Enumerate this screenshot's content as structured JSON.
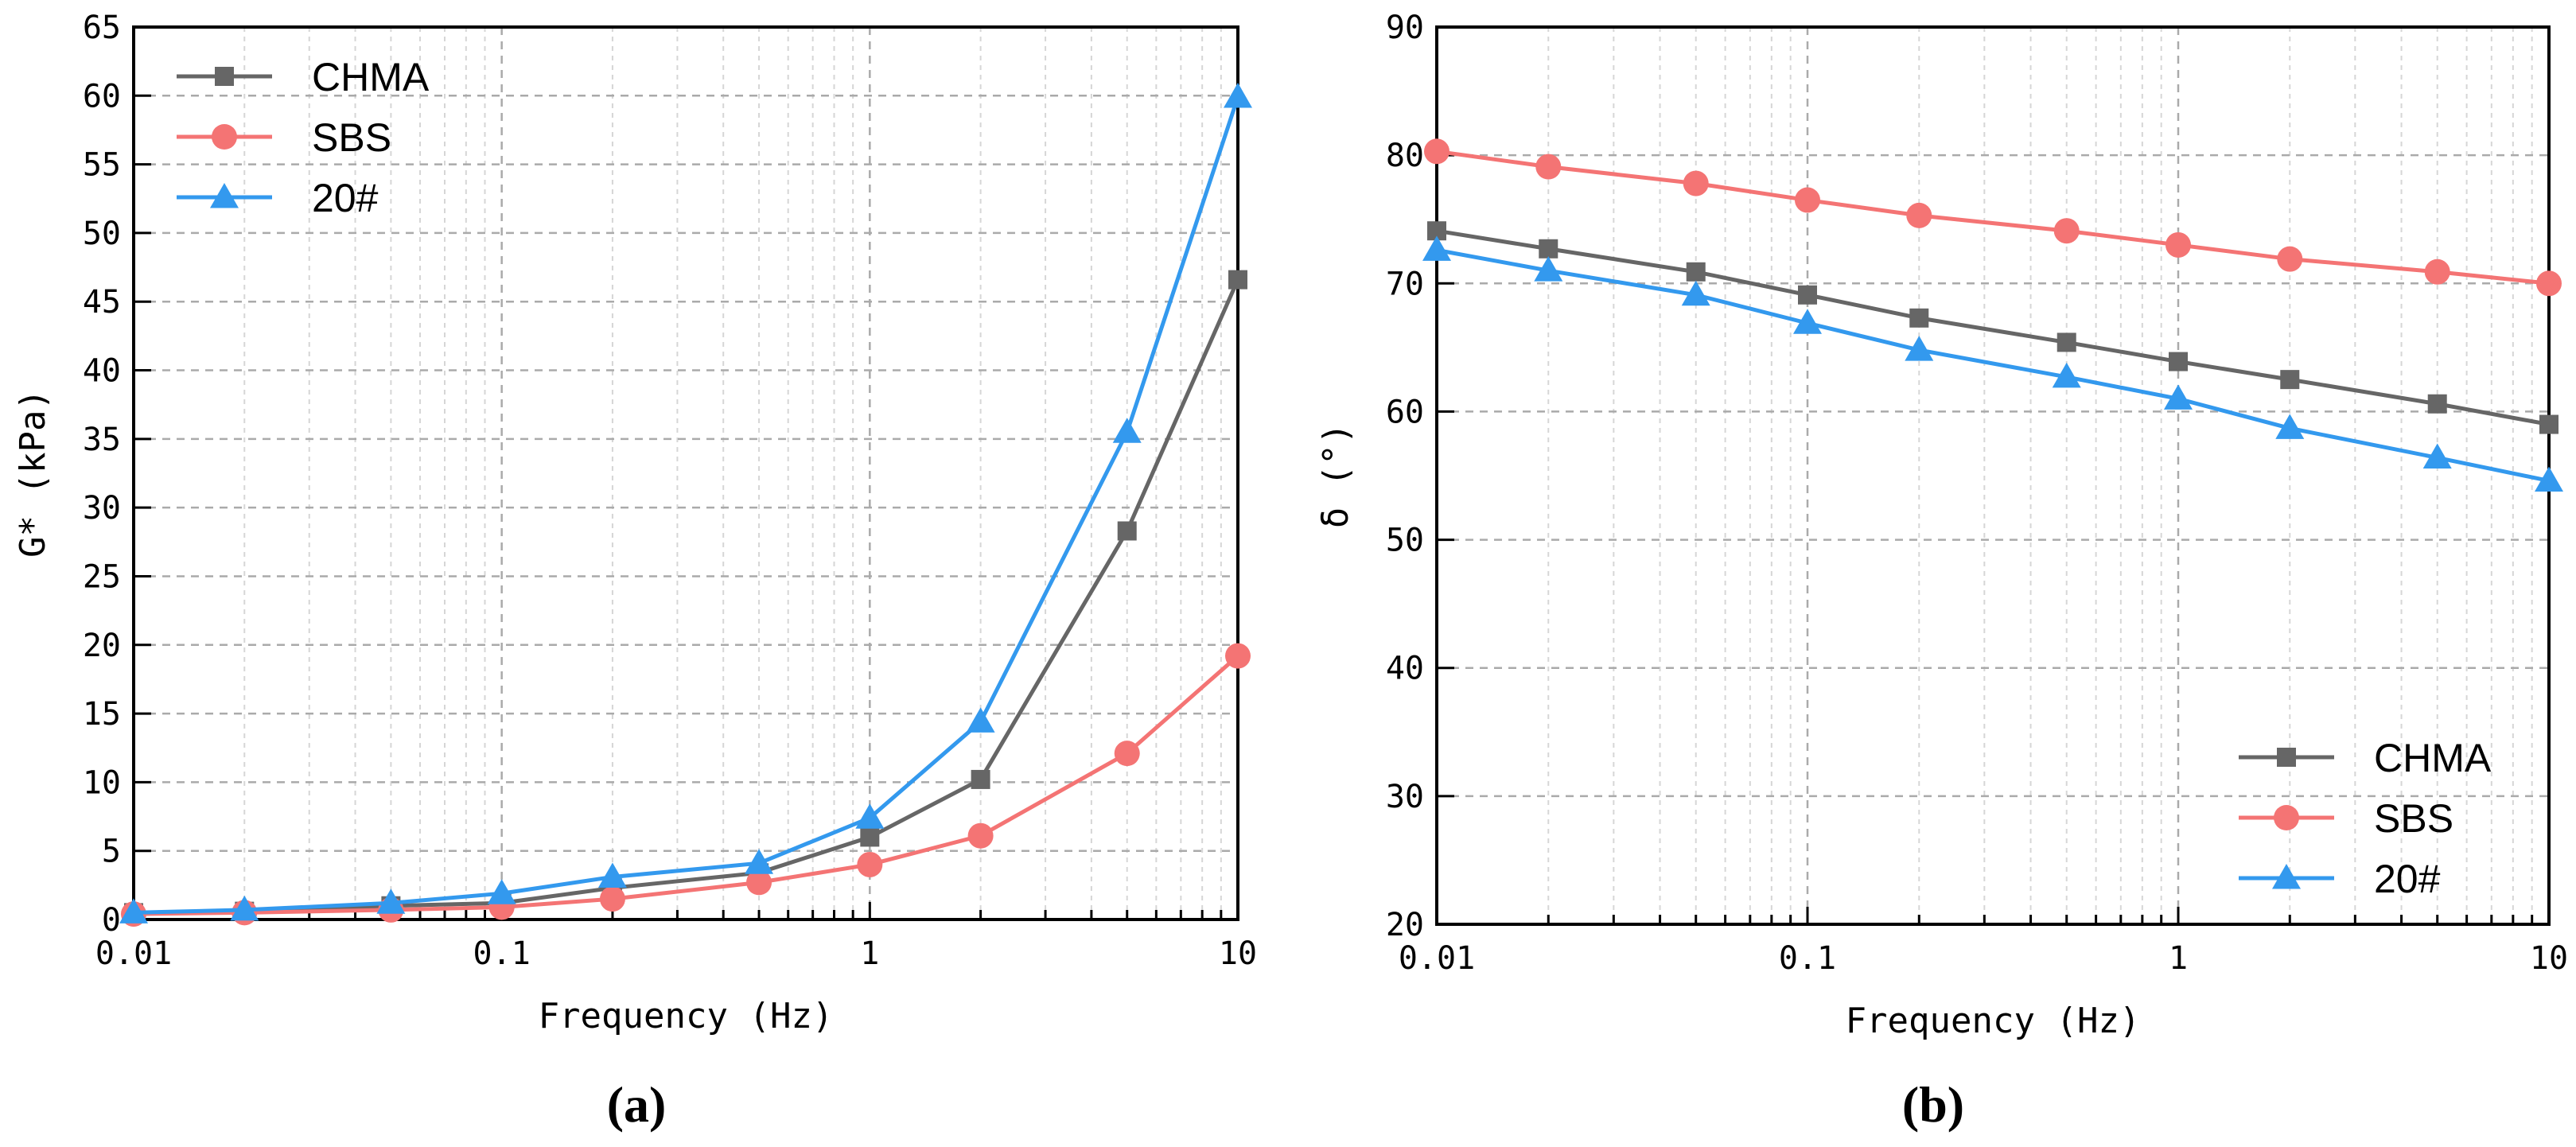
{
  "chart_data": [
    {
      "panel": "(a)",
      "type": "line",
      "xscale": "log",
      "x": [
        0.01,
        0.02,
        0.05,
        0.1,
        0.2,
        0.5,
        1,
        2,
        5,
        10
      ],
      "xlim": [
        0.01,
        10
      ],
      "xticks": [
        "0.01",
        "0.1",
        "1",
        "10"
      ],
      "ylim": [
        0,
        65
      ],
      "yticks": [
        "0",
        "5",
        "10",
        "15",
        "20",
        "25",
        "30",
        "35",
        "40",
        "45",
        "50",
        "55",
        "60",
        "65"
      ],
      "xlabel": "Frequency (Hz)",
      "ylabel": "G* (kPa)",
      "grid": true,
      "legend": "top-left",
      "series": [
        {
          "name": "CHMA",
          "color": "#666666",
          "marker": "square",
          "values": [
            0.5,
            0.6,
            1.0,
            1.2,
            2.3,
            3.4,
            6.0,
            10.2,
            28.3,
            46.6
          ]
        },
        {
          "name": "SBS",
          "color": "#f47474",
          "marker": "circle",
          "values": [
            0.4,
            0.5,
            0.7,
            0.9,
            1.5,
            2.7,
            4.0,
            6.1,
            12.1,
            19.2
          ]
        },
        {
          "name": "20#",
          "color": "#3399ee",
          "marker": "triangle",
          "values": [
            0.5,
            0.7,
            1.2,
            1.9,
            3.1,
            4.1,
            7.4,
            14.4,
            35.5,
            59.9
          ]
        }
      ]
    },
    {
      "panel": "(b)",
      "type": "line",
      "xscale": "log",
      "x": [
        0.01,
        0.02,
        0.05,
        0.1,
        0.2,
        0.5,
        1,
        2,
        5,
        10
      ],
      "xlim": [
        0.01,
        10
      ],
      "xticks": [
        "0.01",
        "0.1",
        "1",
        "10"
      ],
      "ylim": [
        20,
        90
      ],
      "yticks": [
        "20",
        "30",
        "40",
        "50",
        "60",
        "70",
        "80",
        "90"
      ],
      "xlabel": "Frequency (Hz)",
      "ylabel": "δ (°)",
      "grid": true,
      "legend": "bottom-right",
      "series": [
        {
          "name": "CHMA",
          "color": "#666666",
          "marker": "square",
          "values": [
            74.1,
            72.7,
            70.9,
            69.1,
            67.3,
            65.4,
            63.9,
            62.5,
            60.6,
            59.0
          ]
        },
        {
          "name": "SBS",
          "color": "#f47474",
          "marker": "circle",
          "values": [
            80.3,
            79.1,
            77.8,
            76.5,
            75.3,
            74.1,
            73.0,
            71.9,
            70.9,
            70.0
          ]
        },
        {
          "name": "20#",
          "color": "#3399ee",
          "marker": "triangle",
          "values": [
            72.6,
            71.0,
            69.1,
            66.9,
            64.8,
            62.7,
            61.0,
            58.7,
            56.4,
            54.6
          ]
        }
      ]
    }
  ]
}
